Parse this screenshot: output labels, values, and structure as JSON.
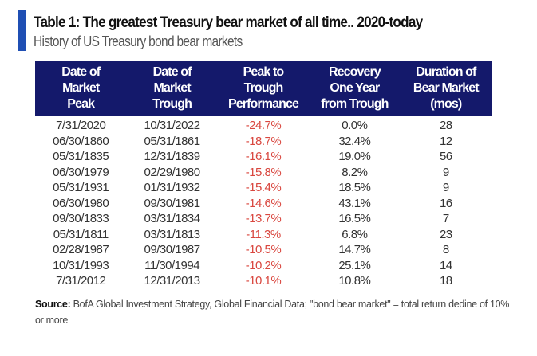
{
  "title": "Table 1: The greatest Treasury bear market of all time.. 2020-today",
  "subtitle": "History of US Treasury bond bear markets",
  "colors": {
    "accent_bar": "#1f4fb4",
    "header_bg": "#14196b",
    "negative": "#d9473f"
  },
  "columns": [
    [
      "Date of",
      "Market",
      "Peak"
    ],
    [
      "Date of",
      "Market",
      "Trough"
    ],
    [
      "Peak to",
      "Trough",
      "Performance"
    ],
    [
      "Recovery",
      "One Year",
      "from Trough"
    ],
    [
      "Duration of",
      "Bear Market",
      "(mos)"
    ]
  ],
  "rows": [
    [
      "7/31/2020",
      "10/31/2022",
      "-24.7%",
      "0.0%",
      "28"
    ],
    [
      "06/30/1860",
      "05/31/1861",
      "-18.7%",
      "32.4%",
      "12"
    ],
    [
      "05/31/1835",
      "12/31/1839",
      "-16.1%",
      "19.0%",
      "56"
    ],
    [
      "06/30/1979",
      "02/29/1980",
      "-15.8%",
      "8.2%",
      "9"
    ],
    [
      "05/31/1931",
      "01/31/1932",
      "-15.4%",
      "18.5%",
      "9"
    ],
    [
      "06/30/1980",
      "09/30/1981",
      "-14.6%",
      "43.1%",
      "16"
    ],
    [
      "09/30/1833",
      "03/31/1834",
      "-13.7%",
      "16.5%",
      "7"
    ],
    [
      "05/31/1811",
      "03/31/1813",
      "-11.3%",
      "6.8%",
      "23"
    ],
    [
      "02/28/1987",
      "09/30/1987",
      "-10.5%",
      "14.7%",
      "8"
    ],
    [
      "10/31/1993",
      "11/30/1994",
      "-10.2%",
      "25.1%",
      "14"
    ],
    [
      "7/31/2012",
      "12/31/2013",
      "-10.1%",
      "10.8%",
      "18"
    ]
  ],
  "source": {
    "label": "Source:",
    "text": " BofA Global Investment Strategy, Global Financial Data; \"bond bear market\" = total return dedine of 10% or more"
  }
}
